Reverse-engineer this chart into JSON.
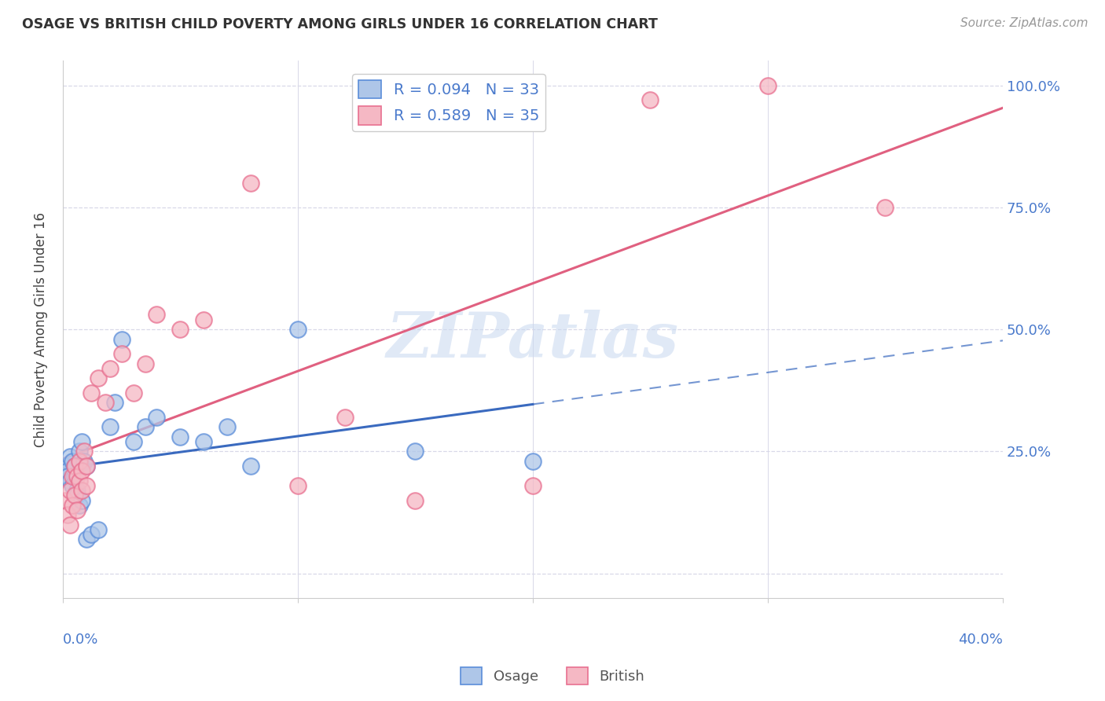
{
  "title": "OSAGE VS BRITISH CHILD POVERTY AMONG GIRLS UNDER 16 CORRELATION CHART",
  "source": "Source: ZipAtlas.com",
  "ylabel": "Child Poverty Among Girls Under 16",
  "watermark": "ZIPatlas",
  "osage_R": 0.094,
  "osage_N": 33,
  "british_R": 0.589,
  "british_N": 35,
  "osage_face_color": "#aec6e8",
  "british_face_color": "#f5b8c4",
  "osage_edge_color": "#5b8dd9",
  "british_edge_color": "#e87090",
  "osage_line_color": "#3a6abf",
  "british_line_color": "#e06080",
  "label_color": "#4a7acc",
  "osage_x": [
    0.001,
    0.002,
    0.002,
    0.003,
    0.003,
    0.004,
    0.004,
    0.005,
    0.005,
    0.006,
    0.006,
    0.007,
    0.007,
    0.008,
    0.008,
    0.009,
    0.01,
    0.01,
    0.012,
    0.015,
    0.02,
    0.022,
    0.025,
    0.03,
    0.035,
    0.04,
    0.05,
    0.06,
    0.07,
    0.08,
    0.1,
    0.15,
    0.2
  ],
  "osage_y": [
    0.22,
    0.21,
    0.2,
    0.19,
    0.24,
    0.18,
    0.23,
    0.22,
    0.2,
    0.17,
    0.16,
    0.14,
    0.25,
    0.27,
    0.15,
    0.23,
    0.22,
    0.07,
    0.08,
    0.09,
    0.3,
    0.35,
    0.48,
    0.27,
    0.3,
    0.32,
    0.28,
    0.27,
    0.3,
    0.22,
    0.5,
    0.25,
    0.23
  ],
  "british_x": [
    0.001,
    0.002,
    0.003,
    0.003,
    0.004,
    0.004,
    0.005,
    0.005,
    0.006,
    0.006,
    0.007,
    0.007,
    0.008,
    0.008,
    0.009,
    0.01,
    0.01,
    0.012,
    0.015,
    0.018,
    0.02,
    0.025,
    0.03,
    0.035,
    0.04,
    0.05,
    0.06,
    0.08,
    0.1,
    0.12,
    0.15,
    0.2,
    0.25,
    0.3,
    0.35
  ],
  "british_y": [
    0.15,
    0.12,
    0.1,
    0.17,
    0.14,
    0.2,
    0.16,
    0.22,
    0.2,
    0.13,
    0.19,
    0.23,
    0.21,
    0.17,
    0.25,
    0.22,
    0.18,
    0.37,
    0.4,
    0.35,
    0.42,
    0.45,
    0.37,
    0.43,
    0.53,
    0.5,
    0.52,
    0.8,
    0.18,
    0.32,
    0.15,
    0.18,
    0.97,
    1.0,
    0.75
  ],
  "xmin": 0.0,
  "xmax": 0.4,
  "ymin": -0.05,
  "ymax": 1.05,
  "ytick_positions": [
    0.0,
    0.25,
    0.5,
    0.75,
    1.0
  ],
  "ytick_labels_right": [
    "",
    "25.0%",
    "50.0%",
    "75.0%",
    "100.0%"
  ],
  "grid_color": "#d8d8e8",
  "background_color": "#ffffff"
}
